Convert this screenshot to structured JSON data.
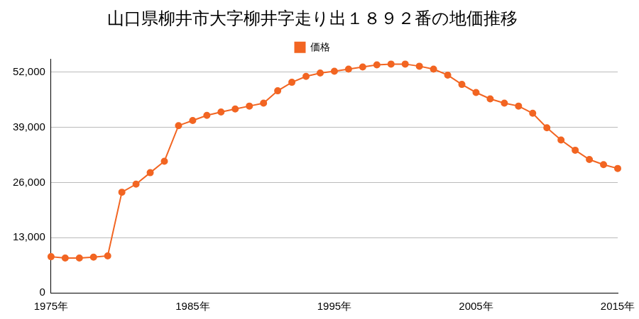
{
  "chart_data": {
    "type": "line",
    "title": "山口県柳井市大字柳井字走り出１８９２番の地価推移",
    "categories": [
      "1975年",
      null,
      null,
      null,
      null,
      null,
      null,
      null,
      null,
      null,
      "1985年",
      null,
      null,
      null,
      null,
      null,
      null,
      null,
      null,
      null,
      "1995年",
      null,
      null,
      null,
      null,
      null,
      null,
      null,
      null,
      null,
      "2005年",
      null,
      null,
      null,
      null,
      null,
      null,
      null,
      null,
      null,
      "2015年"
    ],
    "series": [
      {
        "name": "価格",
        "color": "#f26522",
        "values": [
          8500,
          8200,
          8200,
          8400,
          8700,
          23700,
          25600,
          28300,
          31000,
          39400,
          40600,
          41800,
          42600,
          43300,
          44000,
          44700,
          47600,
          49600,
          51000,
          51800,
          52200,
          52700,
          53200,
          53700,
          53900,
          53900,
          53400,
          52700,
          51300,
          49100,
          47200,
          45700,
          44700,
          44000,
          42300,
          38900,
          36000,
          33600,
          31400,
          30200,
          29300
        ]
      }
    ],
    "ylim": [
      0,
      55000
    ],
    "yticks": [
      0,
      {
        "value": 13000,
        "label": "13,000"
      },
      {
        "value": 26000,
        "label": "26,000"
      },
      {
        "value": 39000,
        "label": "39,000"
      },
      {
        "value": 52000,
        "label": "52,000"
      }
    ],
    "grid": true,
    "legend": "top",
    "marker": "circle"
  }
}
